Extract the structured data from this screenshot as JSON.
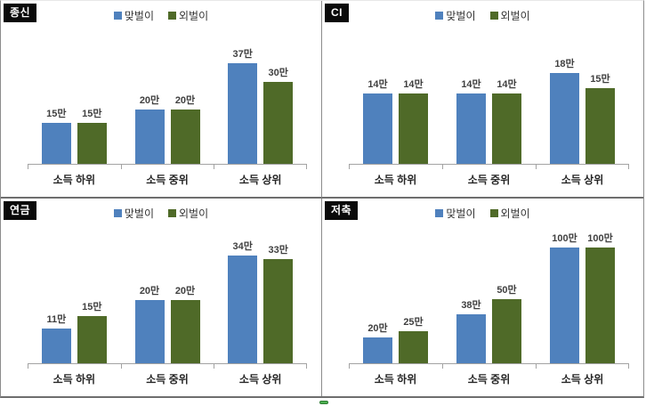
{
  "colors": {
    "series1": "#4f81bd",
    "series2": "#4f6a28",
    "axis": "#a3a3a3",
    "value_label": "#3f3f3f",
    "category_label": "#262626",
    "title_bg": "#0a0a0a",
    "title_fg": "#ffffff",
    "selection_handle": "#4caf50"
  },
  "legend": {
    "items": [
      {
        "label": "맞벌이",
        "color": "#4f81bd"
      },
      {
        "label": "외벌이",
        "color": "#4f6a28"
      }
    ]
  },
  "chart_data": [
    {
      "type": "bar",
      "title": "종신",
      "categories": [
        "소득 하위",
        "소득 중위",
        "소득 상위"
      ],
      "series": [
        {
          "name": "맞벌이",
          "values": [
            15,
            20,
            37
          ],
          "labels": [
            "15만",
            "20만",
            "37만"
          ]
        },
        {
          "name": "외벌이",
          "values": [
            15,
            20,
            30
          ],
          "labels": [
            "15만",
            "20만",
            "30만"
          ]
        }
      ],
      "ylim": [
        0,
        48
      ],
      "legend_position": "top-center",
      "grid": false
    },
    {
      "type": "bar",
      "title": "CI",
      "categories": [
        "소득 하위",
        "소득 중위",
        "소득 상위"
      ],
      "series": [
        {
          "name": "맞벌이",
          "values": [
            14,
            14,
            18
          ],
          "labels": [
            "14만",
            "14만",
            "18만"
          ]
        },
        {
          "name": "외벌이",
          "values": [
            14,
            14,
            15
          ],
          "labels": [
            "14만",
            "14만",
            "15만"
          ]
        }
      ],
      "ylim": [
        0,
        26
      ],
      "legend_position": "top-center",
      "grid": false
    },
    {
      "type": "bar",
      "title": "연금",
      "categories": [
        "소득 하위",
        "소득 중위",
        "소득 상위"
      ],
      "series": [
        {
          "name": "맞벌이",
          "values": [
            11,
            20,
            34
          ],
          "labels": [
            "11만",
            "20만",
            "34만"
          ]
        },
        {
          "name": "외벌이",
          "values": [
            15,
            20,
            33
          ],
          "labels": [
            "15만",
            "20만",
            "33만"
          ]
        }
      ],
      "ylim": [
        0,
        42
      ],
      "legend_position": "top-center",
      "grid": false
    },
    {
      "type": "bar",
      "title": "저축",
      "categories": [
        "소득 하위",
        "소득 중위",
        "소득 상위"
      ],
      "series": [
        {
          "name": "맞벌이",
          "values": [
            20,
            38,
            100
          ],
          "labels": [
            "20만",
            "38만",
            "100만"
          ]
        },
        {
          "name": "외벌이",
          "values": [
            25,
            50,
            100
          ],
          "labels": [
            "25만",
            "50만",
            "100만"
          ]
        }
      ],
      "ylim": [
        0,
        103
      ],
      "legend_position": "top-center",
      "grid": false
    }
  ]
}
